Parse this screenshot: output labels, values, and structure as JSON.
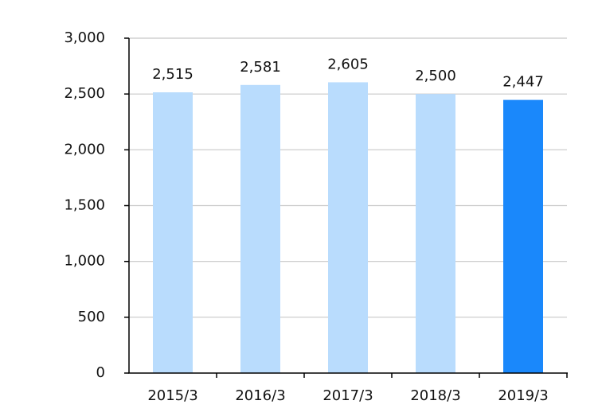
{
  "chart_data": {
    "type": "bar",
    "categories": [
      "2015/3",
      "2016/3",
      "2017/3",
      "2018/3",
      "2019/3"
    ],
    "values": [
      2515,
      2581,
      2605,
      2500,
      2447
    ],
    "value_labels": [
      "2,515",
      "2,581",
      "2,605",
      "2,500",
      "2,447"
    ],
    "colors": [
      "#b9dcfd",
      "#b9dcfd",
      "#b9dcfd",
      "#b9dcfd",
      "#1a88fb"
    ],
    "ylim": [
      0,
      3000
    ],
    "yticks": [
      0,
      500,
      {
        "value": 1000,
        "label": "1,000"
      },
      {
        "value": 1500,
        "label": "1,500"
      },
      {
        "value": 2000,
        "label": "2,000"
      },
      {
        "value": 2500,
        "label": "2,500"
      },
      {
        "value": 3000,
        "label": "3,000"
      }
    ],
    "grid": true
  }
}
